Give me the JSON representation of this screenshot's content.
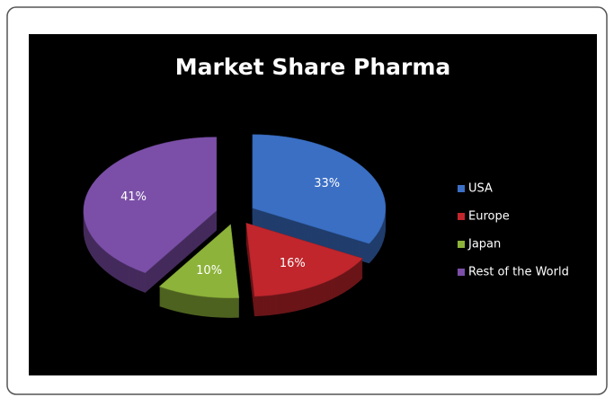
{
  "chart_data": {
    "type": "pie",
    "title": "Market Share Pharma",
    "categories": [
      "USA",
      "Europe",
      "Japan",
      "Rest of the World"
    ],
    "values": [
      33,
      16,
      10,
      41
    ],
    "value_labels": [
      "33%",
      "16%",
      "10%",
      "41%"
    ],
    "colors": [
      "#3a6fc4",
      "#c0262c",
      "#8db33a",
      "#7b4fa8"
    ],
    "legend": "right"
  }
}
